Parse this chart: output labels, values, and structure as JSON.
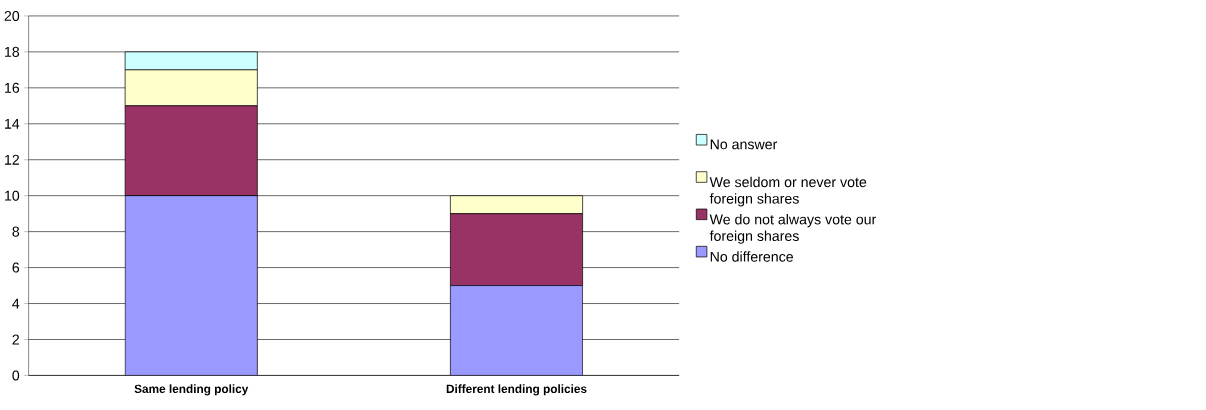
{
  "chart_data": {
    "type": "bar",
    "stacked": true,
    "categories": [
      "Same lending policy",
      "Different lending policies"
    ],
    "series": [
      {
        "name": "No difference",
        "color": "#9999ff",
        "values": [
          10,
          5
        ]
      },
      {
        "name": "We do not always vote our foreign shares",
        "color": "#993366",
        "values": [
          5,
          4
        ]
      },
      {
        "name": "We seldom or never vote foreign shares",
        "color": "#ffffcc",
        "values": [
          2,
          1
        ]
      },
      {
        "name": "No answer",
        "color": "#ccffff",
        "values": [
          1,
          0
        ]
      }
    ],
    "ylim": [
      0,
      20
    ],
    "yticks": [
      0,
      2,
      4,
      6,
      8,
      10,
      12,
      14,
      16,
      18,
      20
    ],
    "grid": "y",
    "legend": "right"
  }
}
